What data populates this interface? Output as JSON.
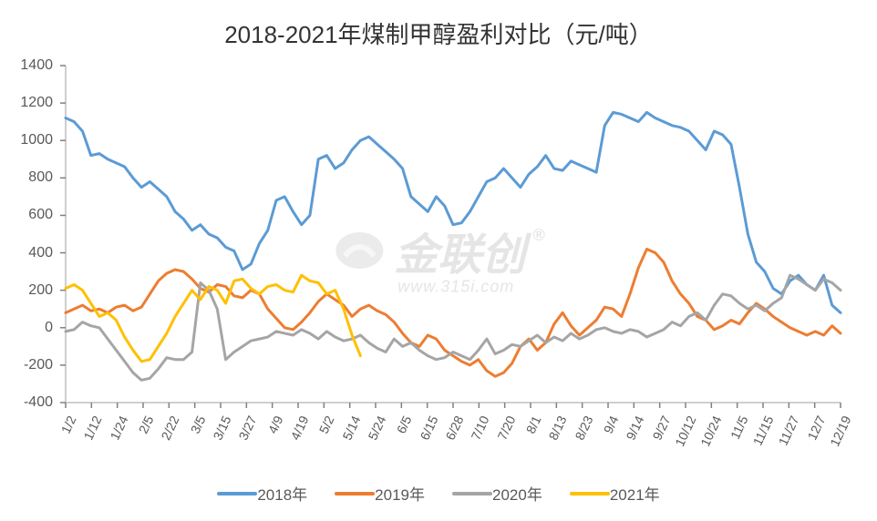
{
  "title": "2018-2021年煤制甲醇盈利对比（元/吨）",
  "ylim": [
    -400,
    1400
  ],
  "ytick_step": 200,
  "yticks": [
    -400,
    -200,
    0,
    200,
    400,
    600,
    800,
    1000,
    1200,
    1400
  ],
  "xlabels": [
    "1/2",
    "1/12",
    "1/24",
    "2/5",
    "2/22",
    "3/5",
    "3/15",
    "3/27",
    "4/9",
    "4/19",
    "5/2",
    "5/14",
    "5/24",
    "6/5",
    "6/15",
    "6/28",
    "7/10",
    "7/20",
    "8/1",
    "8/13",
    "8/23",
    "9/4",
    "9/14",
    "9/27",
    "10/12",
    "10/24",
    "11/5",
    "11/15",
    "11/27",
    "12/7",
    "12/19"
  ],
  "background_color": "#ffffff",
  "axis_color": "#bfbfbf",
  "tick_color": "#808080",
  "label_color": "#595959",
  "title_fontsize": 26,
  "label_fontsize": 16,
  "xtick_fontsize": 14,
  "line_width": 3,
  "watermark_text": "金联创",
  "watermark_sub": "www.315i.com",
  "watermark_r": "®",
  "series": [
    {
      "name": "2018年",
      "color": "#5b9bd5",
      "data": [
        1120,
        1100,
        1050,
        920,
        930,
        900,
        880,
        860,
        800,
        750,
        780,
        740,
        700,
        620,
        580,
        520,
        550,
        500,
        480,
        430,
        410,
        310,
        340,
        450,
        520,
        680,
        700,
        620,
        550,
        600,
        900,
        920,
        850,
        880,
        950,
        1000,
        1020,
        980,
        940,
        900,
        850,
        700,
        660,
        620,
        700,
        650,
        550,
        560,
        620,
        700,
        780,
        800,
        850,
        800,
        750,
        820,
        860,
        920,
        850,
        840,
        890,
        870,
        850,
        830,
        1080,
        1150,
        1140,
        1120,
        1100,
        1150,
        1120,
        1100,
        1080,
        1070,
        1050,
        1000,
        950,
        1050,
        1030,
        980,
        750,
        500,
        350,
        300,
        210,
        180,
        250,
        280,
        230,
        200,
        280,
        120,
        80
      ]
    },
    {
      "name": "2019年",
      "color": "#ed7d31",
      "data": [
        80,
        100,
        120,
        90,
        100,
        80,
        110,
        120,
        90,
        110,
        180,
        250,
        290,
        310,
        300,
        260,
        210,
        190,
        230,
        220,
        170,
        160,
        200,
        180,
        100,
        50,
        0,
        -10,
        30,
        80,
        140,
        180,
        150,
        120,
        60,
        100,
        120,
        90,
        70,
        30,
        -30,
        -80,
        -100,
        -40,
        -60,
        -120,
        -150,
        -180,
        -200,
        -170,
        -230,
        -260,
        -240,
        -190,
        -100,
        -60,
        -120,
        -80,
        20,
        80,
        10,
        -40,
        0,
        40,
        110,
        100,
        60,
        180,
        320,
        420,
        400,
        350,
        250,
        180,
        130,
        60,
        40,
        -10,
        10,
        40,
        20,
        80,
        130,
        100,
        60,
        30,
        0,
        -20,
        -40,
        -20,
        -40,
        10,
        -30
      ]
    },
    {
      "name": "2020年",
      "color": "#a5a5a5",
      "data": [
        -20,
        -10,
        30,
        10,
        0,
        -60,
        -120,
        -180,
        -240,
        -280,
        -270,
        -220,
        -160,
        -170,
        -170,
        -130,
        240,
        200,
        100,
        -170,
        -130,
        -100,
        -70,
        -60,
        -50,
        -20,
        -30,
        -40,
        -10,
        -30,
        -60,
        -20,
        -50,
        -70,
        -60,
        -40,
        -80,
        -110,
        -130,
        -60,
        -100,
        -80,
        -120,
        -150,
        -170,
        -160,
        -130,
        -150,
        -170,
        -120,
        -60,
        -140,
        -120,
        -90,
        -100,
        -70,
        -40,
        -80,
        -50,
        -70,
        -30,
        -60,
        -40,
        -10,
        0,
        -20,
        -30,
        -10,
        -20,
        -50,
        -30,
        -10,
        30,
        10,
        60,
        80,
        40,
        120,
        180,
        170,
        130,
        100,
        120,
        90,
        130,
        160,
        280,
        260,
        230,
        200,
        260,
        240,
        200
      ]
    },
    {
      "name": "2021年",
      "color": "#ffc000",
      "data": [
        210,
        230,
        200,
        130,
        60,
        80,
        40,
        -50,
        -120,
        -180,
        -170,
        -100,
        -30,
        60,
        130,
        200,
        150,
        220,
        200,
        130,
        250,
        260,
        210,
        180,
        220,
        230,
        200,
        190,
        280,
        250,
        240,
        180,
        200,
        100,
        -40,
        -150
      ]
    }
  ],
  "legend_labels": [
    "2018年",
    "2019年",
    "2020年",
    "2021年"
  ]
}
